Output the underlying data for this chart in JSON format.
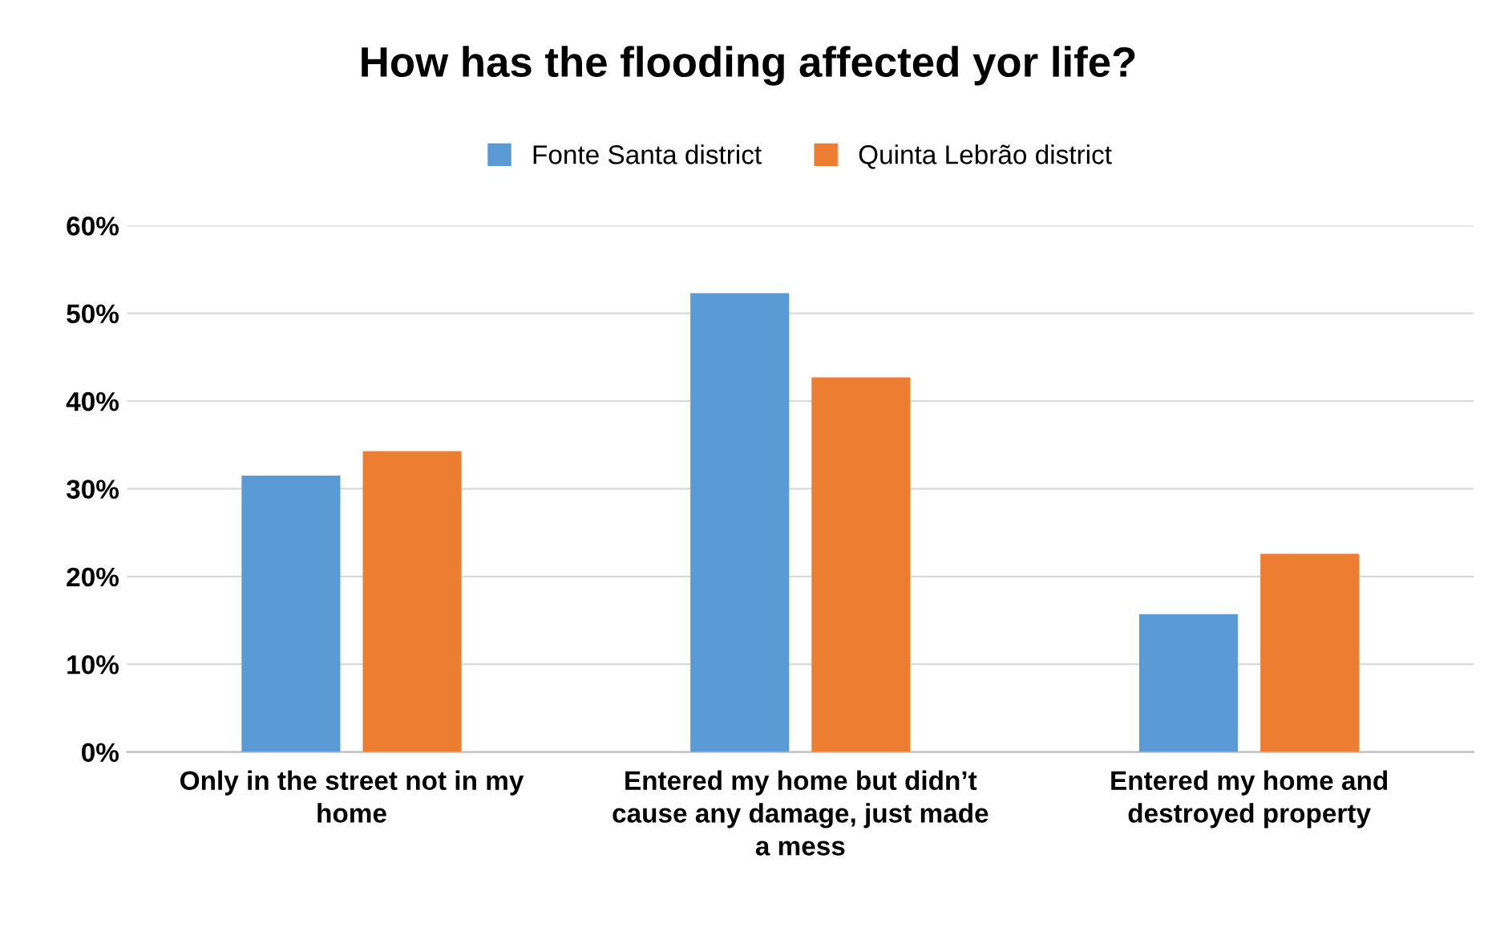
{
  "chart_data": {
    "type": "bar",
    "title": "How has the flooding affected yor life?",
    "categories": [
      "Only in the street not in my home",
      "Entered my home but didn’t cause any damage, just made a mess",
      "Entered my home and destroyed property"
    ],
    "series": [
      {
        "name": "Fonte Santa district",
        "color": "#5b9bd5",
        "values": [
          31.5,
          52.3,
          15.7
        ]
      },
      {
        "name": "Quinta Lebrão district",
        "color": "#ed7d31",
        "values": [
          34.3,
          42.7,
          22.6
        ]
      }
    ],
    "ylim": [
      0,
      60
    ],
    "yticks": [
      {
        "value": 0,
        "label": "0%"
      },
      {
        "value": 10,
        "label": "10%"
      },
      {
        "value": 20,
        "label": "20%"
      },
      {
        "value": 30,
        "label": "30%"
      },
      {
        "value": 40,
        "label": "40%"
      },
      {
        "value": 50,
        "label": "50%"
      },
      {
        "value": 60,
        "label": "60%"
      }
    ],
    "grid": "y",
    "legend": "top"
  }
}
